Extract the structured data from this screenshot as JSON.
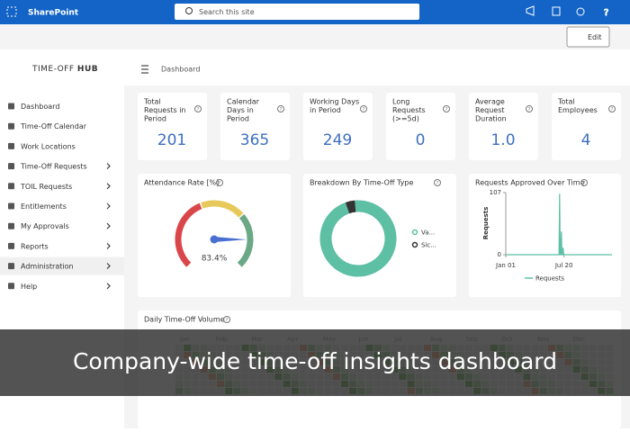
{
  "header": {
    "site": "SharePoint",
    "search": "Search this site",
    "edit": "Edit"
  },
  "brand": {
    "name": "TIME-OFF",
    "accent": "HUB"
  },
  "breadcrumb": "Dashboard",
  "nav": [
    {
      "label": "Dashboard",
      "expandable": false
    },
    {
      "label": "Time-Off Calendar",
      "expandable": false
    },
    {
      "label": "Work Locations",
      "expandable": false
    },
    {
      "label": "Time-Off Requests",
      "expandable": true
    },
    {
      "label": "TOIL Requests",
      "expandable": true
    },
    {
      "label": "Entitlements",
      "expandable": true
    },
    {
      "label": "My Approvals",
      "expandable": true
    },
    {
      "label": "Reports",
      "expandable": true
    },
    {
      "label": "Administration",
      "expandable": true
    },
    {
      "label": "Help",
      "expandable": true
    }
  ],
  "kpis": [
    {
      "label": [
        "Total",
        "Requests in",
        "Period"
      ],
      "value": 201
    },
    {
      "label": [
        "Calendar",
        "Days in",
        "Period"
      ],
      "value": 365
    },
    {
      "label": [
        "Working Days",
        "in Period"
      ],
      "value": 249
    },
    {
      "label": [
        "Long",
        "Requests",
        "(>=5d)"
      ],
      "value": 0
    },
    {
      "label": [
        "Average",
        "Request",
        "Duration"
      ],
      "value": 1.0,
      "value_label": "1.0"
    },
    {
      "label": [
        "Total",
        "Employees"
      ],
      "value": 4
    }
  ],
  "attendance": {
    "title": "Attendance Rate [%]",
    "ylim": [
      0,
      100
    ],
    "value": 83.4,
    "value_label": "83.4%"
  },
  "breakdown": {
    "title": "Breakdown By Time-Off Type",
    "series": [
      {
        "name": "Va...",
        "value": 96,
        "color": "#5dbfa4"
      },
      {
        "name": "Sic...",
        "value": 4,
        "color": "#333333"
      }
    ]
  },
  "approved": {
    "title": "Requests Approved Over Time",
    "ylabel": "Requests",
    "ylim": [
      0,
      107
    ],
    "yticks": [
      0,
      107
    ],
    "xlim": [
      0,
      365
    ],
    "xticks": [
      {
        "value": 0,
        "label": "Jan 01"
      },
      {
        "value": 200,
        "label": "Jul 20"
      }
    ],
    "series": [
      {
        "name": "Requests",
        "color": "#5dbfa4",
        "x": [
          0,
          183,
          185,
          187,
          189,
          191,
          193,
          195,
          197,
          199,
          365
        ],
        "values": [
          0,
          0,
          105,
          0,
          0,
          40,
          0,
          0,
          12,
          0,
          0
        ]
      }
    ]
  },
  "heatmap": {
    "title": "Daily Time-Off Volume",
    "months": [
      "Jan",
      "Feb",
      "Mar",
      "Apr",
      "May",
      "Jun",
      "Jul",
      "Aug",
      "Sep",
      "Oct",
      "Nov",
      "Dec"
    ]
  },
  "caption": "Company-wide time-off insights dashboard"
}
